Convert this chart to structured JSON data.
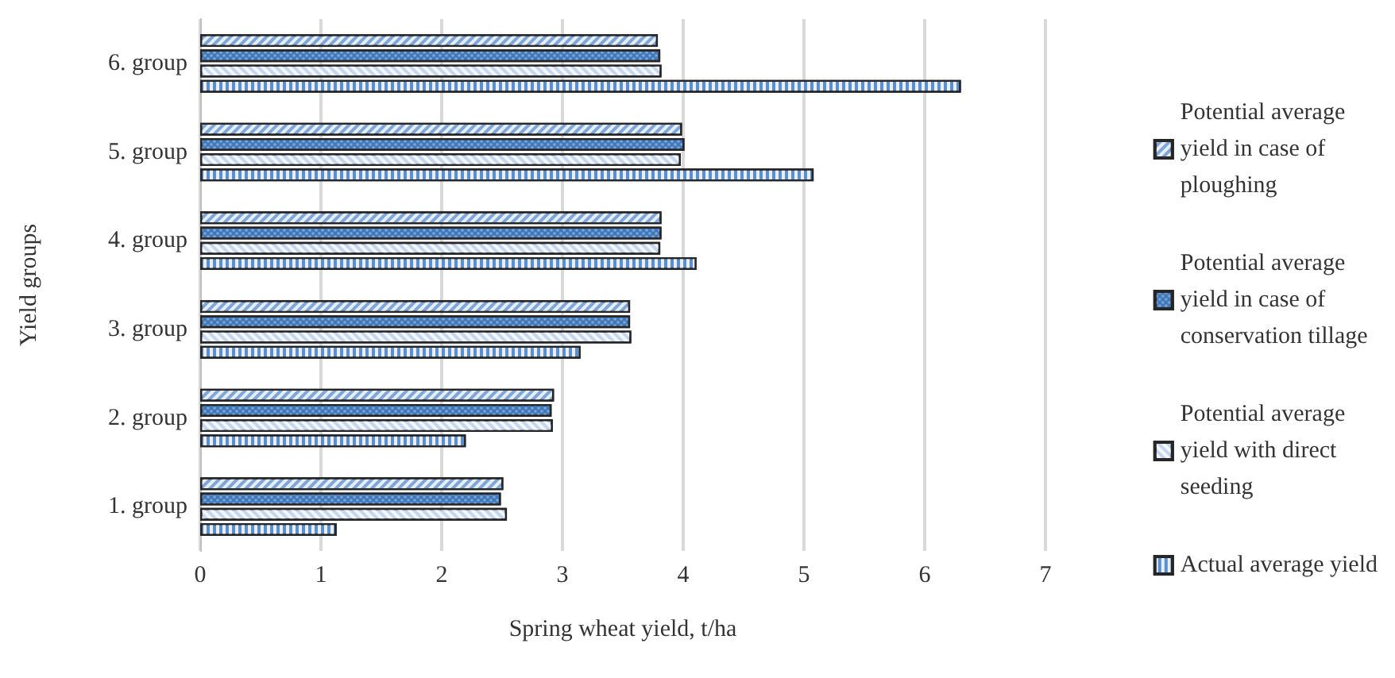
{
  "chart_data": {
    "type": "bar",
    "orientation": "horizontal",
    "xlabel": "Spring wheat yield, t/ha",
    "ylabel": "Yield groups",
    "categories": [
      "6. group",
      "5. group",
      "4. group",
      "3. group",
      "2. group",
      "1. group"
    ],
    "series": [
      {
        "name": "Potential average yield in case of ploughing",
        "color": "#7fa6d6",
        "values": [
          3.79,
          3.99,
          3.82,
          3.56,
          2.93,
          2.51
        ]
      },
      {
        "name": "Potential average yield in case of conservation tillage",
        "color": "#3f78bc",
        "values": [
          3.81,
          4.01,
          3.82,
          3.56,
          2.91,
          2.49
        ]
      },
      {
        "name": "Potential average yield with direct seeding",
        "color": "#c5d7ee",
        "values": [
          3.82,
          3.98,
          3.81,
          3.57,
          2.92,
          2.54
        ]
      },
      {
        "name": "Actual average yield",
        "color": "#5b8fcc",
        "values": [
          6.3,
          5.08,
          4.11,
          3.15,
          2.2,
          1.13
        ]
      }
    ],
    "xlim": [
      0,
      7
    ],
    "xticks": [
      0,
      1,
      2,
      3,
      4,
      5,
      6,
      7
    ],
    "grid": "x",
    "legend": "right"
  }
}
